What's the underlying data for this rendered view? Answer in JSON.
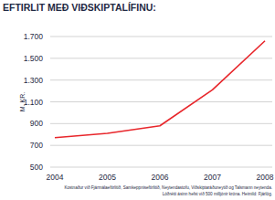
{
  "chart_data": {
    "type": "line",
    "title": "EFTIRLIT MEÐ VIÐSKIPTALÍFINU:",
    "y_label": "M. KR.",
    "categories": [
      "2004",
      "2005",
      "2006",
      "2007",
      "2008"
    ],
    "values": [
      770,
      810,
      880,
      1210,
      1660
    ],
    "color": "#e8262b",
    "ylim": [
      500,
      1700
    ],
    "yticks": [
      500,
      700,
      900,
      {
        "value": 1100,
        "label": "1.100"
      },
      {
        "value": 1300,
        "label": "1.300"
      },
      {
        "value": 1500,
        "label": "1.500"
      },
      {
        "value": 1700,
        "label": "1.700"
      }
    ],
    "grid": true,
    "annotations": [
      "Kostnaður við Fjármálaeftirlitið, Samkeppniseftirlitið, Neytendastofu, Viðskiptaráðuneytið og Talsmann neytenda.",
      "Lóðrétti ásinn hefst við 500 milljónir króna. Heimild: Fjárlög."
    ]
  }
}
